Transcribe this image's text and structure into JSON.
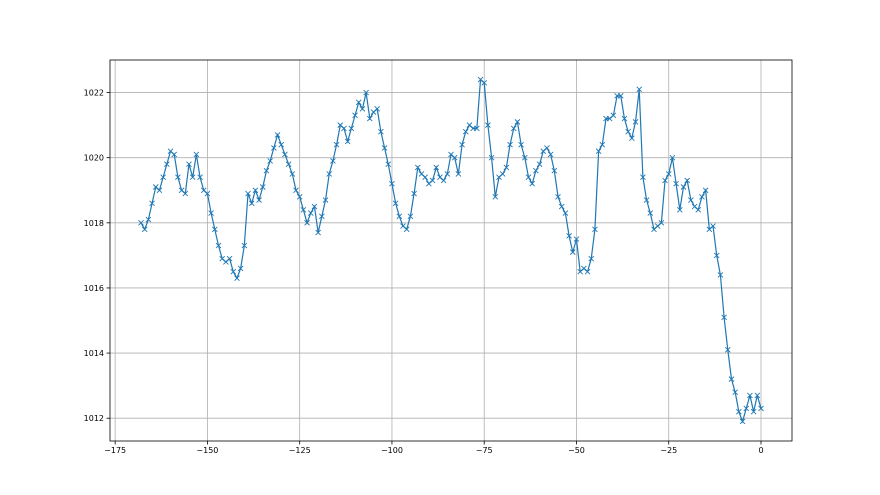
{
  "chart_data": {
    "type": "line",
    "color": "#1f77b4",
    "marker": "x",
    "grid": true,
    "xlim": [
      -176.4,
      8.4
    ],
    "ylim": [
      1011.3,
      1023.0
    ],
    "xticks": [
      {
        "value": -175,
        "label": "−175"
      },
      {
        "value": -150,
        "label": "−150"
      },
      {
        "value": -125,
        "label": "−125"
      },
      {
        "value": -100,
        "label": "−100"
      },
      {
        "value": -75,
        "label": "−75"
      },
      {
        "value": -50,
        "label": "−50"
      },
      {
        "value": -25,
        "label": "−25"
      },
      0
    ],
    "yticks": [
      1012,
      1014,
      1016,
      1018,
      1020,
      1022
    ],
    "x": [
      -168,
      -167,
      -166,
      -165,
      -164,
      -163,
      -162,
      -161,
      -160,
      -159,
      -158,
      -157,
      -156,
      -155,
      -154,
      -153,
      -152,
      -151,
      -150,
      -149,
      -148,
      -147,
      -146,
      -145,
      -144,
      -143,
      -142,
      -141,
      -140,
      -139,
      -138,
      -137,
      -136,
      -135,
      -134,
      -133,
      -132,
      -131,
      -130,
      -129,
      -128,
      -127,
      -126,
      -125,
      -124,
      -123,
      -122,
      -121,
      -120,
      -119,
      -118,
      -117,
      -116,
      -115,
      -114,
      -113,
      -112,
      -111,
      -110,
      -109,
      -108,
      -107,
      -106,
      -105,
      -104,
      -103,
      -102,
      -101,
      -100,
      -99,
      -98,
      -97,
      -96,
      -95,
      -94,
      -93,
      -92,
      -91,
      -90,
      -89,
      -88,
      -87,
      -86,
      -85,
      -84,
      -83,
      -82,
      -81,
      -80,
      -79,
      -78,
      -77,
      -76,
      -75,
      -74,
      -73,
      -72,
      -71,
      -70,
      -69,
      -68,
      -67,
      -66,
      -65,
      -64,
      -63,
      -62,
      -61,
      -60,
      -59,
      -58,
      -57,
      -56,
      -55,
      -54,
      -53,
      -52,
      -51,
      -50,
      -49,
      -48,
      -47,
      -46,
      -45,
      -44,
      -43,
      -42,
      -41,
      -40,
      -39,
      -38,
      -37,
      -36,
      -35,
      -34,
      -33,
      -32,
      -31,
      -30,
      -29,
      -28,
      -27,
      -26,
      -25,
      -24,
      -23,
      -22,
      -21,
      -20,
      -19,
      -18,
      -17,
      -16,
      -15,
      -14,
      -13,
      -12,
      -11,
      -10,
      -9,
      -8,
      -7,
      -6,
      -5,
      -4,
      -3,
      -2,
      -1,
      0
    ],
    "values": [
      1018.0,
      1017.8,
      1018.1,
      1018.6,
      1019.1,
      1019.0,
      1019.4,
      1019.8,
      1020.2,
      1020.1,
      1019.4,
      1019.0,
      1018.9,
      1019.8,
      1019.4,
      1020.1,
      1019.4,
      1019.0,
      1018.9,
      1018.3,
      1017.8,
      1017.3,
      1016.9,
      1016.8,
      1016.9,
      1016.5,
      1016.3,
      1016.6,
      1017.3,
      1018.9,
      1018.6,
      1019.0,
      1018.7,
      1019.1,
      1019.6,
      1019.9,
      1020.3,
      1020.7,
      1020.4,
      1020.1,
      1019.8,
      1019.5,
      1019.0,
      1018.8,
      1018.4,
      1018.0,
      1018.3,
      1018.5,
      1017.7,
      1018.2,
      1018.7,
      1019.5,
      1019.9,
      1020.4,
      1021.0,
      1020.9,
      1020.5,
      1020.9,
      1021.3,
      1021.7,
      1021.5,
      1022.0,
      1021.2,
      1021.4,
      1021.5,
      1020.8,
      1020.3,
      1019.8,
      1019.2,
      1018.6,
      1018.2,
      1017.9,
      1017.8,
      1018.2,
      1018.9,
      1019.7,
      1019.5,
      1019.4,
      1019.2,
      1019.3,
      1019.7,
      1019.4,
      1019.3,
      1019.5,
      1020.1,
      1020.0,
      1019.5,
      1020.4,
      1020.8,
      1021.0,
      1020.9,
      1020.9,
      1022.4,
      1022.3,
      1021.0,
      1020.0,
      1018.8,
      1019.4,
      1019.5,
      1019.7,
      1020.4,
      1020.9,
      1021.1,
      1020.4,
      1020.0,
      1019.4,
      1019.2,
      1019.6,
      1019.8,
      1020.2,
      1020.3,
      1020.1,
      1019.6,
      1018.8,
      1018.5,
      1018.3,
      1017.6,
      1017.1,
      1017.5,
      1016.5,
      1016.6,
      1016.5,
      1016.9,
      1017.8,
      1020.2,
      1020.4,
      1021.2,
      1021.2,
      1021.3,
      1021.9,
      1021.9,
      1021.2,
      1020.8,
      1020.6,
      1021.1,
      1022.1,
      1019.4,
      1018.7,
      1018.3,
      1017.8,
      1017.9,
      1018.0,
      1019.3,
      1019.5,
      1020.0,
      1019.2,
      1018.4,
      1019.1,
      1019.3,
      1018.7,
      1018.5,
      1018.4,
      1018.8,
      1019.0,
      1017.8,
      1017.9,
      1017.0,
      1016.4,
      1015.1,
      1014.1,
      1013.2,
      1012.8,
      1012.2,
      1011.9,
      1012.3,
      1012.7,
      1012.2,
      1012.7,
      1012.3
    ]
  }
}
